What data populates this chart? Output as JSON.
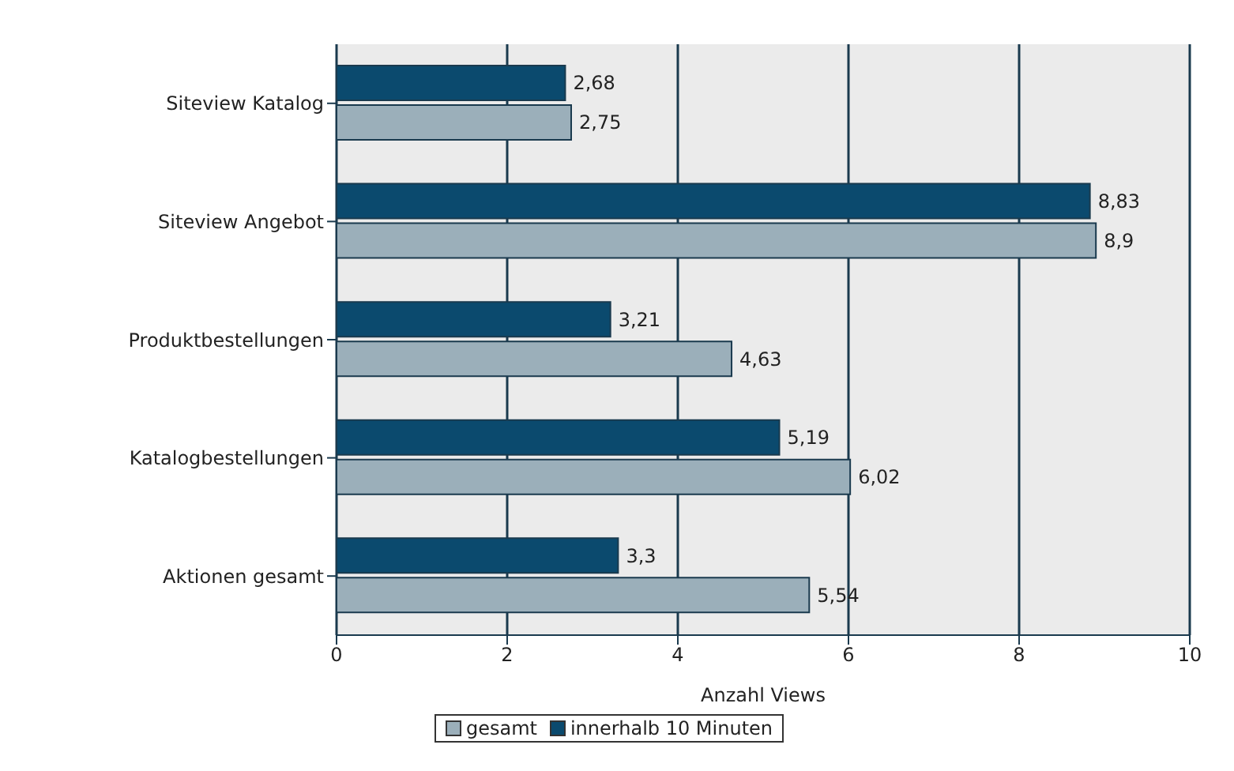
{
  "chart_data": {
    "type": "bar",
    "orientation": "horizontal",
    "xlabel": "Anzahl Views",
    "categories": [
      "Siteview Katalog",
      "Siteview Angebot",
      "Produktbestellungen",
      "Katalogbestellungen",
      "Aktionen gesamt"
    ],
    "series": [
      {
        "name": "innerhalb 10  Minuten",
        "color": "#0b4a6e",
        "values": [
          2.68,
          8.83,
          3.21,
          5.19,
          3.3
        ],
        "value_labels": [
          "2,68",
          "8,83",
          "3,21",
          "5,19",
          "3,3"
        ]
      },
      {
        "name": "gesamt",
        "color": "#9bafba",
        "values": [
          2.75,
          8.9,
          4.63,
          6.02,
          5.54
        ],
        "value_labels": [
          "2,75",
          "8,9",
          "4,63",
          "6,02",
          "5,54"
        ]
      }
    ],
    "xlim": [
      0,
      10
    ],
    "xticks": [
      0,
      2,
      4,
      6,
      8,
      10
    ],
    "grid": "x",
    "legend": "bottom"
  }
}
